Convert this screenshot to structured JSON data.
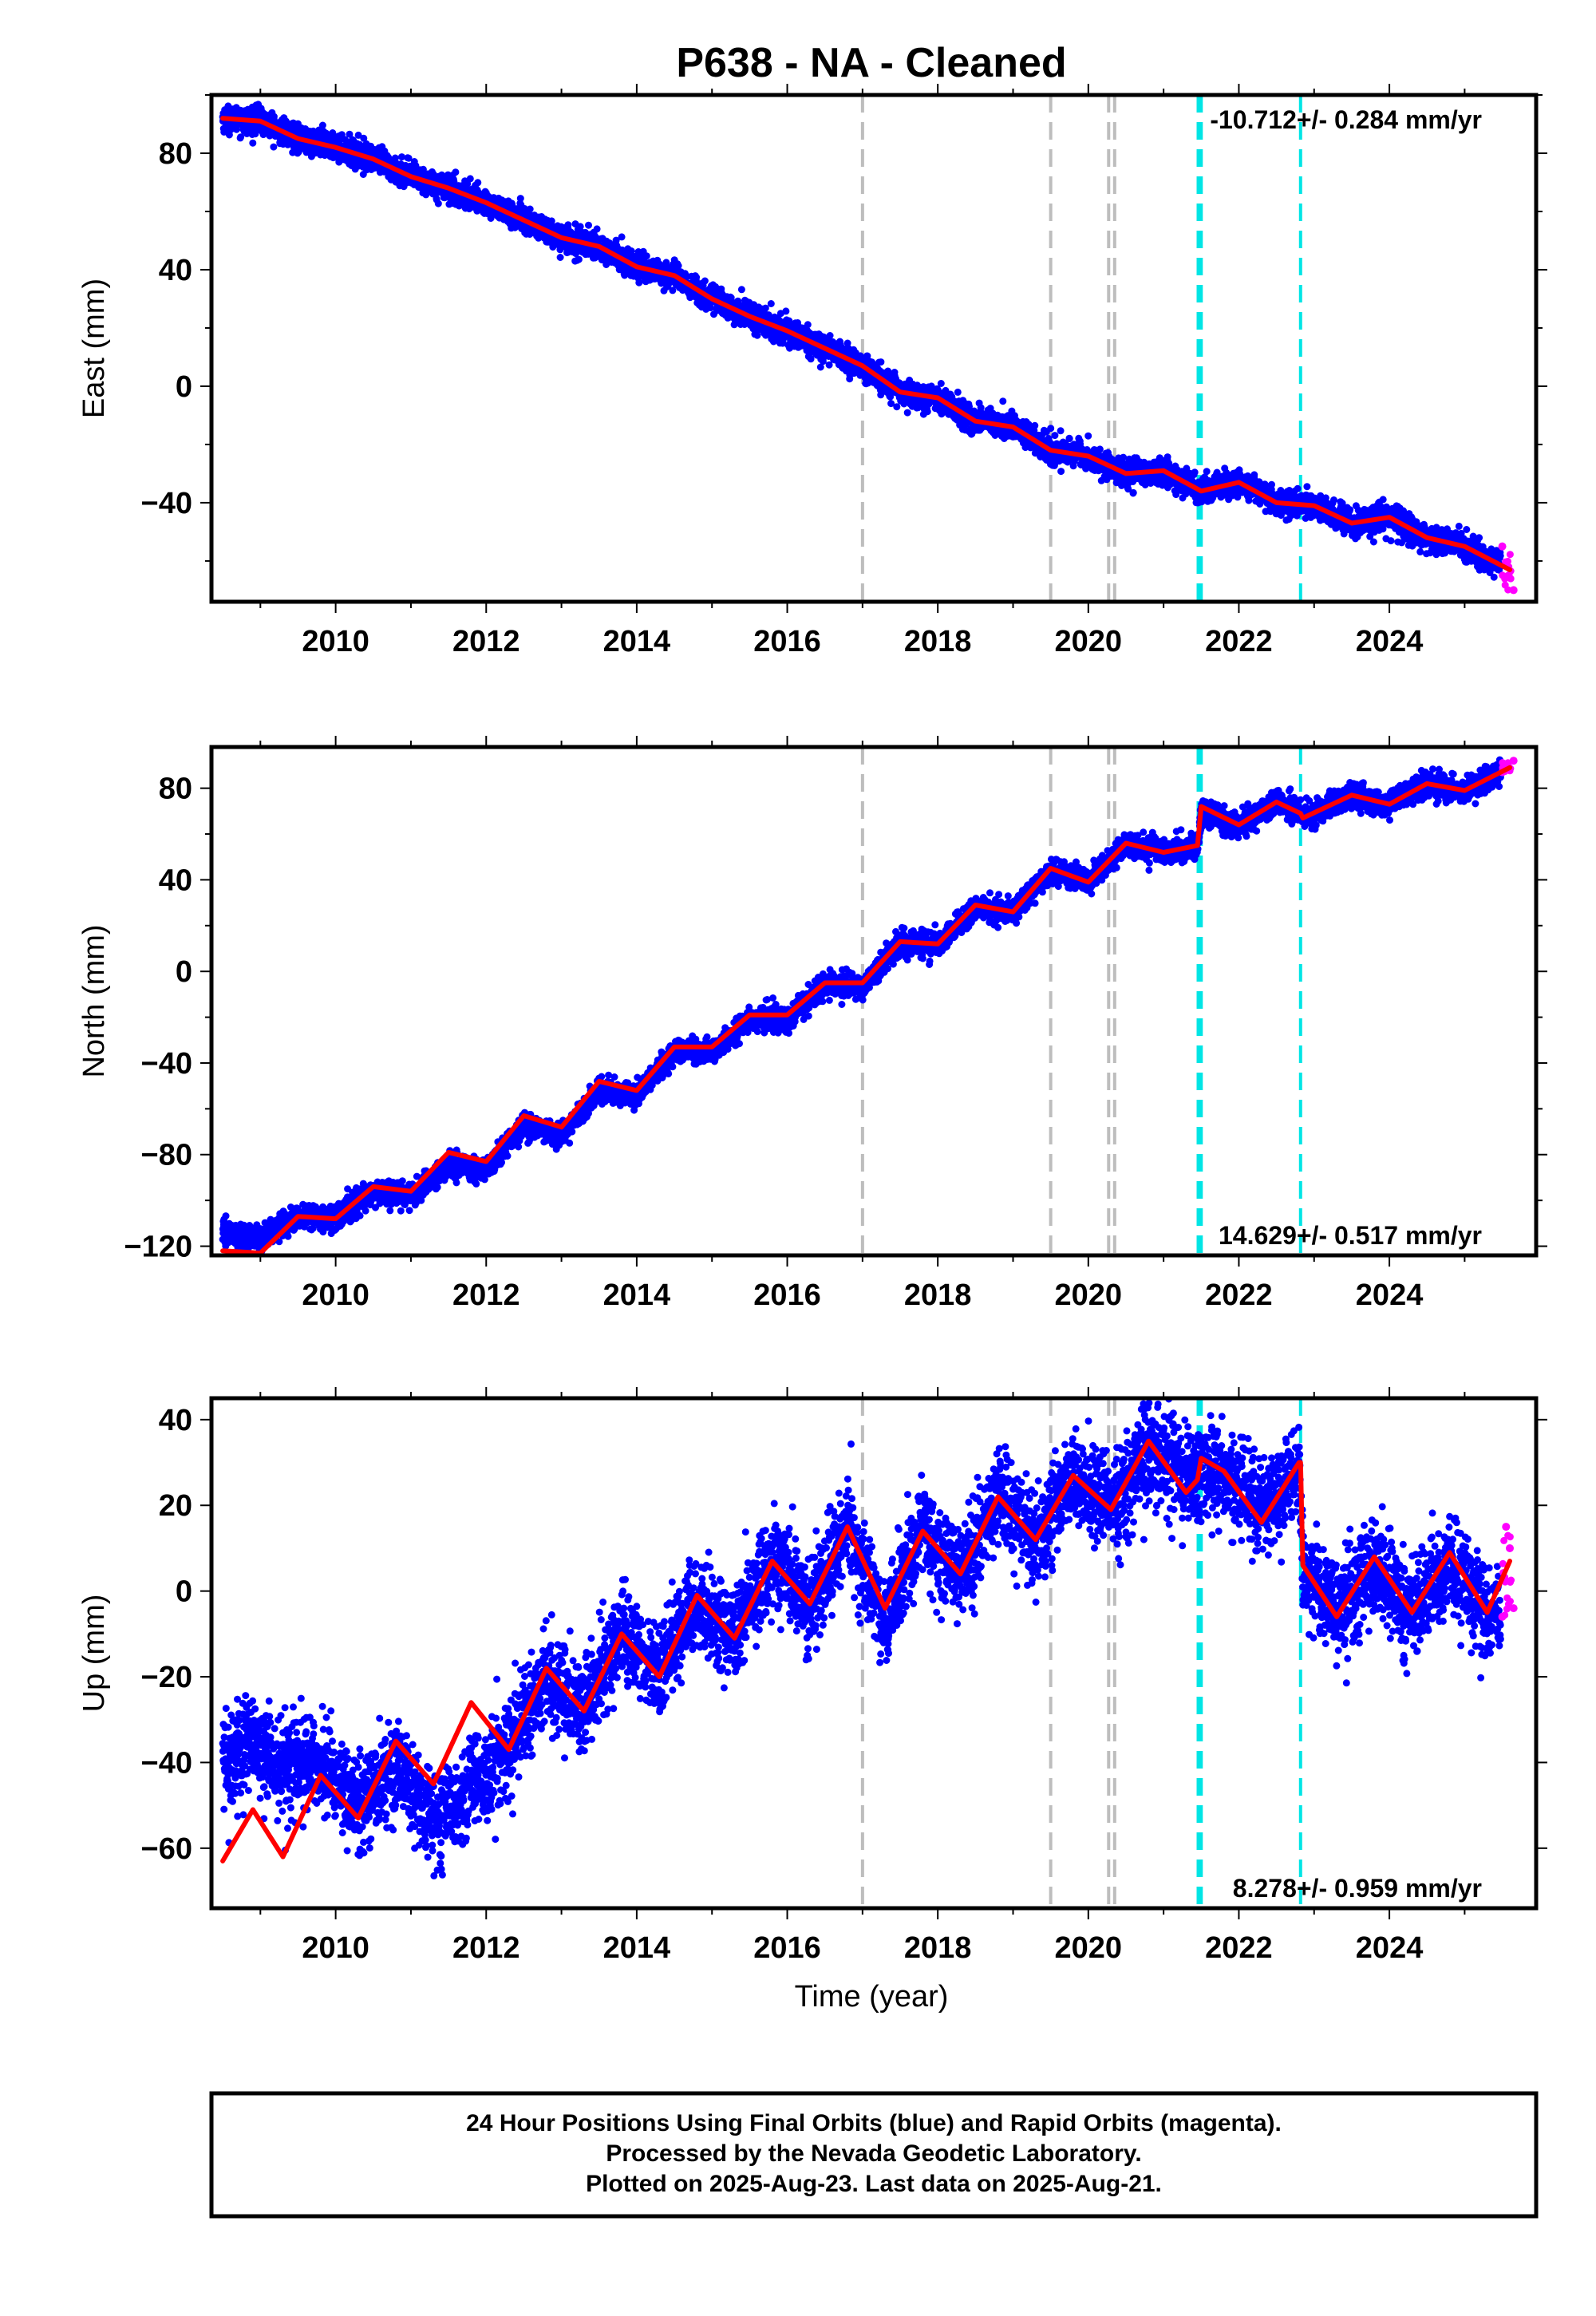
{
  "title": "P638  - NA - Cleaned",
  "xlabel": "Time (year)",
  "footer": {
    "line1": "24 Hour Positions Using Final Orbits (blue) and Rapid Orbits (magenta).",
    "line2": "Processed by the Nevada Geodetic Laboratory.",
    "line3": "Plotted on 2025-Aug-23. Last data on 2025-Aug-21."
  },
  "colors": {
    "final_orbits": "#0000ff",
    "rapid_orbits": "#ff00ff",
    "model": "#ff0000",
    "event_gray": "#bdbdbd",
    "event_cyan": "#00e5e5"
  },
  "chart_data": [
    {
      "type": "scatter",
      "panel": "east",
      "ylabel": "East (mm)",
      "rate_label": "-10.712+/- 0.284 mm/yr",
      "rate_position": "top-right",
      "xlim": [
        2008.35,
        2025.95
      ],
      "ylim": [
        -74,
        100
      ],
      "xticks": [
        2010,
        2012,
        2014,
        2016,
        2018,
        2020,
        2022,
        2024
      ],
      "yticks": [
        -40,
        0,
        40,
        80
      ],
      "gray_event_years": [
        2017.0,
        2019.5,
        2020.27,
        2020.35
      ],
      "cyan_event_years": [
        2021.46,
        2021.5,
        2022.82
      ],
      "model": {
        "x": [
          2008.5,
          2009.0,
          2009.5,
          2010.0,
          2010.5,
          2011.0,
          2011.5,
          2012.0,
          2012.5,
          2013.0,
          2013.5,
          2014.0,
          2014.5,
          2015.0,
          2015.5,
          2016.0,
          2016.5,
          2017.0,
          2017.5,
          2018.0,
          2018.5,
          2019.0,
          2019.5,
          2020.0,
          2020.5,
          2021.0,
          2021.5,
          2022.0,
          2022.5,
          2023.0,
          2023.5,
          2024.0,
          2024.5,
          2025.0,
          2025.6
        ],
        "y": [
          92,
          91,
          85,
          82,
          78,
          72,
          68,
          63,
          57,
          51,
          48,
          41,
          38,
          30,
          24,
          19,
          13,
          7,
          -2,
          -4,
          -12,
          -14,
          -22,
          -24,
          -30,
          -29,
          -36,
          -33,
          -40,
          -41,
          -47,
          -45,
          -52,
          -55,
          -63
        ]
      },
      "final_orbits_trend": {
        "x": [
          2008.5,
          2009.0,
          2009.5,
          2010.0,
          2010.5,
          2011.0,
          2011.5,
          2012.0,
          2012.5,
          2013.0,
          2013.5,
          2014.0,
          2014.5,
          2015.0,
          2015.5,
          2016.0,
          2016.5,
          2017.0,
          2017.5,
          2018.0,
          2018.5,
          2019.0,
          2019.5,
          2020.0,
          2020.5,
          2021.0,
          2021.5,
          2022.0,
          2022.5,
          2023.0,
          2023.5,
          2024.0,
          2024.5,
          2025.0,
          2025.6
        ],
        "y": [
          92,
          91,
          85,
          82,
          78,
          72,
          68,
          63,
          57,
          51,
          48,
          41,
          38,
          30,
          24,
          19,
          13,
          7,
          -2,
          -4,
          -12,
          -14,
          -22,
          -24,
          -30,
          -29,
          -36,
          -33,
          -40,
          -41,
          -47,
          -45,
          -52,
          -55,
          -63
        ]
      },
      "final_orbits_scatter_mm": 2.2,
      "rapid_orbits": {
        "x": [
          2025.5,
          2025.65
        ],
        "y": [
          -55,
          -70
        ]
      }
    },
    {
      "type": "scatter",
      "panel": "north",
      "ylabel": "North (mm)",
      "rate_label": "14.629+/- 0.517 mm/yr",
      "rate_position": "bottom-right",
      "xlim": [
        2008.35,
        2025.95
      ],
      "ylim": [
        -124,
        98
      ],
      "xticks": [
        2010,
        2012,
        2014,
        2016,
        2018,
        2020,
        2022,
        2024
      ],
      "yticks": [
        -120,
        -80,
        -40,
        0,
        40,
        80
      ],
      "gray_event_years": [
        2017.0,
        2019.5,
        2020.27,
        2020.35
      ],
      "cyan_event_years": [
        2021.46,
        2021.5,
        2022.82
      ],
      "model": {
        "x": [
          2008.5,
          2009.0,
          2009.5,
          2010.0,
          2010.5,
          2011.0,
          2011.5,
          2012.0,
          2012.5,
          2013.0,
          2013.5,
          2014.0,
          2014.5,
          2015.0,
          2015.5,
          2016.0,
          2016.5,
          2017.0,
          2017.5,
          2018.0,
          2018.5,
          2019.0,
          2019.5,
          2020.0,
          2020.5,
          2021.0,
          2021.45,
          2021.5,
          2022.0,
          2022.5,
          2022.82,
          2022.85,
          2023.5,
          2024.0,
          2024.5,
          2025.0,
          2025.6
        ],
        "y": [
          -122,
          -123,
          -107,
          -108,
          -94,
          -96,
          -79,
          -83,
          -63,
          -68,
          -48,
          -52,
          -33,
          -33,
          -19,
          -19,
          -5,
          -5,
          13,
          12,
          29,
          26,
          45,
          39,
          56,
          52,
          55,
          72,
          64,
          74,
          69,
          67,
          77,
          73,
          82,
          79,
          89
        ]
      },
      "final_orbits_trend": {
        "x": [
          2008.5,
          2009.0,
          2009.5,
          2010.0,
          2010.5,
          2011.0,
          2011.5,
          2012.0,
          2012.5,
          2013.0,
          2013.5,
          2014.0,
          2014.5,
          2015.0,
          2015.5,
          2016.0,
          2016.5,
          2017.0,
          2017.5,
          2018.0,
          2018.5,
          2019.0,
          2019.5,
          2020.0,
          2020.5,
          2021.0,
          2021.45,
          2021.5,
          2022.0,
          2022.5,
          2022.82,
          2022.85,
          2023.5,
          2024.0,
          2024.5,
          2025.0,
          2025.6
        ],
        "y": [
          -114,
          -117,
          -107,
          -107,
          -96,
          -98,
          -85,
          -87,
          -67,
          -72,
          -52,
          -54,
          -35,
          -35,
          -21,
          -21,
          -6,
          -6,
          12,
          12,
          28,
          26,
          44,
          39,
          56,
          52,
          55,
          69,
          64,
          74,
          69,
          67,
          77,
          73,
          82,
          79,
          89
        ]
      },
      "final_orbits_scatter_mm": 2.6,
      "rapid_orbits": {
        "x": [
          2025.5,
          2025.65
        ],
        "y": [
          87,
          92
        ]
      }
    },
    {
      "type": "scatter",
      "panel": "up",
      "ylabel": "Up (mm)",
      "rate_label": "8.278+/- 0.959 mm/yr",
      "rate_position": "bottom-right",
      "xlim": [
        2008.35,
        2025.95
      ],
      "ylim": [
        -74,
        45
      ],
      "xticks": [
        2010,
        2012,
        2014,
        2016,
        2018,
        2020,
        2022,
        2024
      ],
      "yticks": [
        -60,
        -40,
        -20,
        0,
        20,
        40
      ],
      "gray_event_years": [
        2017.0,
        2019.5,
        2020.27,
        2020.35
      ],
      "cyan_event_years": [
        2021.46,
        2021.5,
        2022.82
      ],
      "model": {
        "x": [
          2008.5,
          2008.9,
          2009.3,
          2009.8,
          2010.3,
          2010.8,
          2011.3,
          2011.8,
          2012.3,
          2012.8,
          2013.3,
          2013.8,
          2014.3,
          2014.8,
          2015.3,
          2015.8,
          2016.3,
          2016.8,
          2017.3,
          2017.8,
          2018.3,
          2018.8,
          2019.3,
          2019.8,
          2020.3,
          2020.8,
          2021.3,
          2021.45,
          2021.5,
          2021.8,
          2022.3,
          2022.8,
          2022.82,
          2022.85,
          2023.3,
          2023.8,
          2024.3,
          2024.8,
          2025.3,
          2025.6
        ],
        "y": [
          -63,
          -51,
          -62,
          -43,
          -53,
          -35,
          -45,
          -26,
          -37,
          -18,
          -28,
          -10,
          -20,
          -1,
          -11,
          7,
          -3,
          15,
          -4,
          14,
          4,
          22,
          12,
          27,
          19,
          35,
          23,
          26,
          31,
          28,
          16,
          30,
          30,
          6,
          -6,
          8,
          -5,
          9,
          -5,
          7
        ]
      },
      "final_orbits_trend": {
        "x": [
          2008.5,
          2008.9,
          2009.3,
          2009.8,
          2010.3,
          2010.8,
          2011.3,
          2011.8,
          2012.3,
          2012.8,
          2013.3,
          2013.8,
          2014.3,
          2014.8,
          2015.3,
          2015.8,
          2016.3,
          2016.8,
          2017.3,
          2017.8,
          2018.3,
          2018.8,
          2019.3,
          2019.8,
          2020.3,
          2020.8,
          2021.3,
          2021.8,
          2022.3,
          2022.8,
          2022.85,
          2023.3,
          2023.8,
          2024.3,
          2024.8,
          2025.3,
          2025.6
        ],
        "y": [
          -40,
          -36,
          -42,
          -40,
          -50,
          -40,
          -55,
          -45,
          -37,
          -20,
          -27,
          -10,
          -19,
          -2,
          -10,
          8,
          -3,
          15,
          -7,
          14,
          3,
          22,
          11,
          27,
          19,
          33,
          27,
          28,
          18,
          29,
          6,
          -5,
          6,
          -5,
          7,
          -6,
          -4
        ]
      },
      "final_orbits_scatter_mm": 5.5,
      "rapid_orbits": {
        "x": [
          2025.5,
          2025.55,
          2025.6,
          2025.65
        ],
        "y": [
          -6,
          15,
          10,
          -4
        ]
      }
    }
  ]
}
